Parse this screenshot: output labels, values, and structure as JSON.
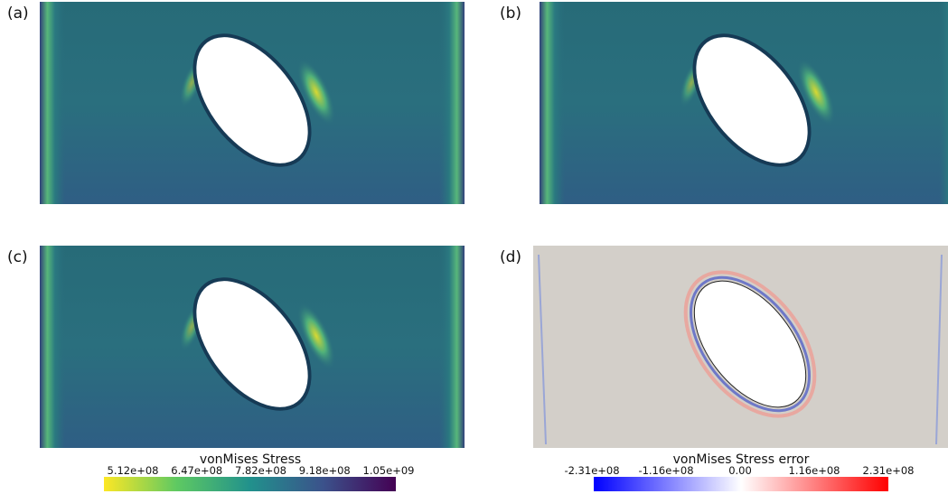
{
  "panels": [
    {
      "label": "(a)"
    },
    {
      "label": "(b)"
    },
    {
      "label": "(c)"
    },
    {
      "label": "(d)"
    }
  ],
  "colorbars": [
    {
      "title": "vonMises Stress",
      "ticks": [
        "5.12e+08",
        "6.47e+08",
        "7.82e+08",
        "9.18e+08",
        "1.05e+09"
      ]
    },
    {
      "title": "vonMises Stress error",
      "ticks": [
        "-2.31e+08",
        "-1.16e+08",
        "0.00",
        "1.16e+08",
        "2.31e+08"
      ]
    }
  ]
}
